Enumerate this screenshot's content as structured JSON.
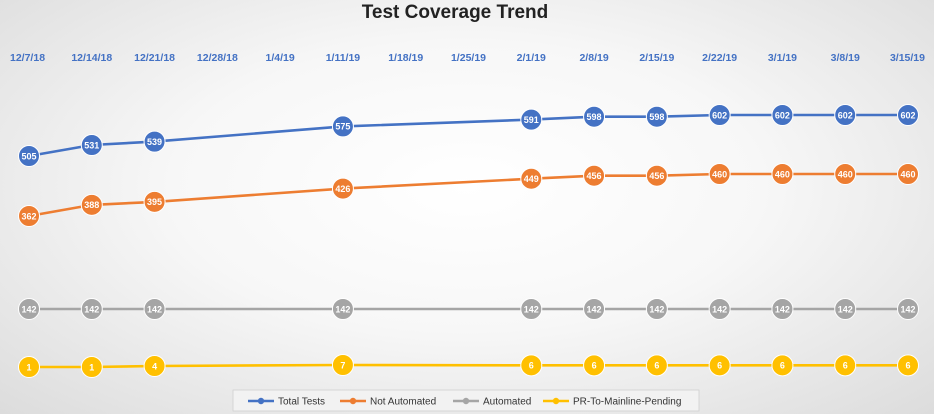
{
  "chart_data": {
    "type": "line",
    "title": "Test Coverage Trend",
    "xlabel": "",
    "ylabel": "",
    "x_axis_position": "top",
    "legend_position": "bottom",
    "grid": false,
    "categories": [
      "12/7/18",
      "12/14/18",
      "12/21/18",
      "12/28/18",
      "1/4/19",
      "1/11/19",
      "1/18/19",
      "1/25/19",
      "2/1/19",
      "2/8/19",
      "2/15/19",
      "2/22/19",
      "3/1/19",
      "3/8/19",
      "3/15/19"
    ],
    "series": [
      {
        "name": "Total Tests",
        "color": "#4472c4",
        "values": [
          505,
          531,
          539,
          null,
          null,
          575,
          null,
          null,
          591,
          598,
          598,
          602,
          602,
          602,
          602
        ]
      },
      {
        "name": "Not Automated",
        "color": "#ed7d31",
        "values": [
          362,
          388,
          395,
          null,
          null,
          426,
          null,
          null,
          449,
          456,
          456,
          460,
          460,
          460,
          460
        ]
      },
      {
        "name": "Automated",
        "color": "#a5a5a5",
        "values": [
          142,
          142,
          142,
          null,
          null,
          142,
          null,
          null,
          142,
          142,
          142,
          142,
          142,
          142,
          142
        ]
      },
      {
        "name": "PR-To-Mainline-Pending",
        "color": "#ffc000",
        "values": [
          1,
          1,
          4,
          null,
          null,
          7,
          null,
          null,
          6,
          6,
          6,
          6,
          6,
          6,
          6
        ]
      }
    ]
  }
}
